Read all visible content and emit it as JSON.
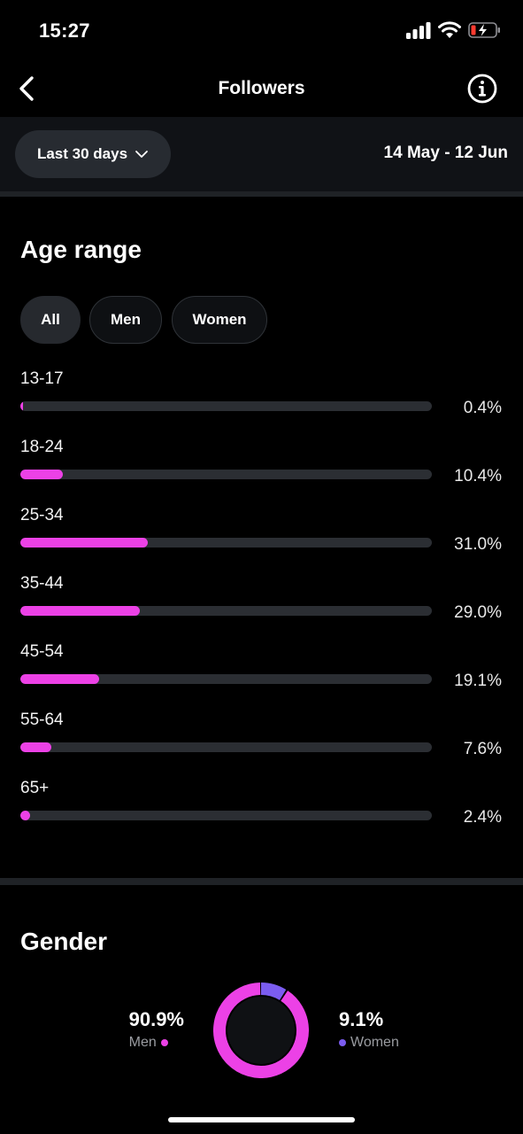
{
  "status_bar": {
    "time": "15:27"
  },
  "nav": {
    "title": "Followers"
  },
  "filter": {
    "period_label": "Last 30 days",
    "date_range": "14 May - 12 Jun"
  },
  "age_section": {
    "title": "Age range",
    "segments": [
      {
        "label": "All",
        "active": true
      },
      {
        "label": "Men",
        "active": false
      },
      {
        "label": "Women",
        "active": false
      }
    ],
    "rows": [
      {
        "label": "13-17",
        "value": 0.4,
        "pct_text": "0.4%"
      },
      {
        "label": "18-24",
        "value": 10.4,
        "pct_text": "10.4%"
      },
      {
        "label": "25-34",
        "value": 31.0,
        "pct_text": "31.0%"
      },
      {
        "label": "35-44",
        "value": 29.0,
        "pct_text": "29.0%"
      },
      {
        "label": "45-54",
        "value": 19.1,
        "pct_text": "19.1%"
      },
      {
        "label": "55-64",
        "value": 7.6,
        "pct_text": "7.6%"
      },
      {
        "label": "65+",
        "value": 2.4,
        "pct_text": "2.4%"
      }
    ]
  },
  "gender_section": {
    "title": "Gender",
    "men": {
      "pct_text": "90.9%",
      "label": "Men",
      "value": 90.9
    },
    "women": {
      "pct_text": "9.1%",
      "label": "Women",
      "value": 9.1
    }
  },
  "colors": {
    "accent_pink": "#ec41e6",
    "accent_purple": "#7b5cf0",
    "track": "#2b2e33"
  }
}
